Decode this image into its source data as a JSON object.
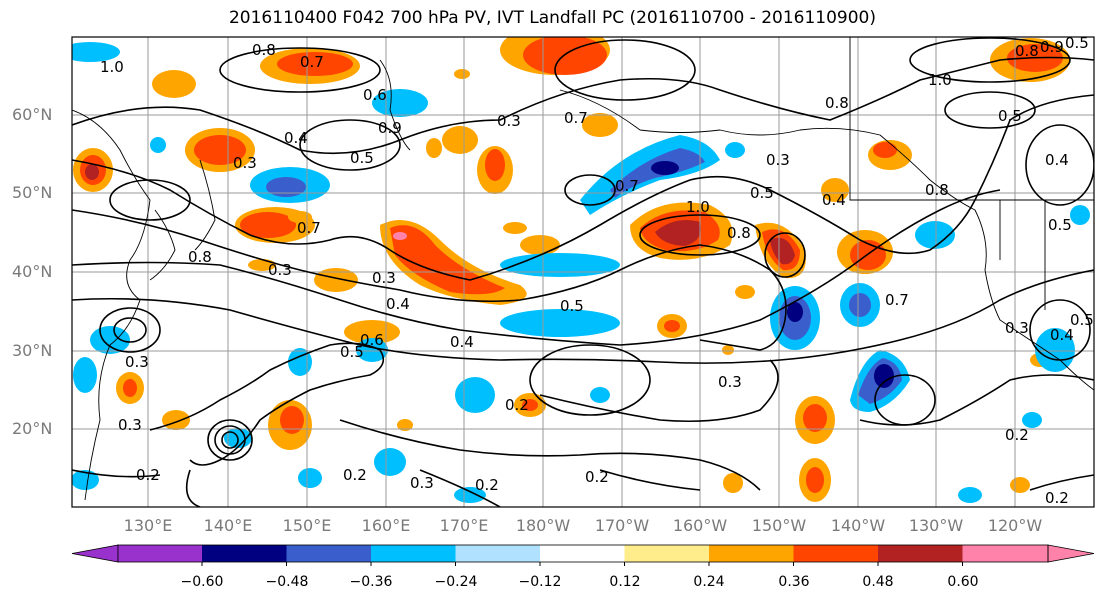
{
  "title": "2016110400 F042 700 hPa PV, IVT Landfall PC (2016110700 - 2016110900)",
  "map": {
    "lat_labels": [
      "60°N",
      "50°N",
      "40°N",
      "30°N",
      "20°N"
    ],
    "lon_labels": [
      "130°E",
      "140°E",
      "150°E",
      "160°E",
      "170°E",
      "180°W",
      "170°W",
      "160°W",
      "150°W",
      "140°W",
      "130°W",
      "120°W"
    ],
    "contour_labels": [
      "1.0",
      "0.8",
      "0.7",
      "0.6",
      "0.9",
      "0.4",
      "0.5",
      "0.3",
      "0.7",
      "0.8",
      "0.3",
      "0.4",
      "0.3",
      "0.5",
      "0.6",
      "0.3",
      "0.3",
      "0.2",
      "0.2",
      "0.2",
      "0.3",
      "0.4",
      "0.3",
      "0.2",
      "0.2",
      "0.7",
      "0.5",
      "1.0",
      "0.8",
      "0.3",
      "0.4",
      "0.5",
      "0.8",
      "0.7",
      "0.7",
      "1.0",
      "0.8",
      "0.5",
      "0.4",
      "0.5",
      "0.3",
      "0.4",
      "0.5",
      "0.3",
      "0.2",
      "0.2",
      "0.8",
      "0.5",
      "0.9"
    ]
  },
  "colorbar": {
    "ticks": [
      "−0.60",
      "−0.48",
      "−0.36",
      "−0.24",
      "−0.12",
      "0.12",
      "0.24",
      "0.36",
      "0.48",
      "0.60"
    ],
    "colors": [
      "#9932cc",
      "#000080",
      "#3a5fcd",
      "#00bfff",
      "#b0e2ff",
      "#ffffff",
      "#ffec8b",
      "#ffa500",
      "#ff4500",
      "#b22222",
      "#ff82ab"
    ]
  },
  "colors": {
    "grid": "#9a9a9a",
    "contour": "#000000",
    "coast": "#000000"
  }
}
